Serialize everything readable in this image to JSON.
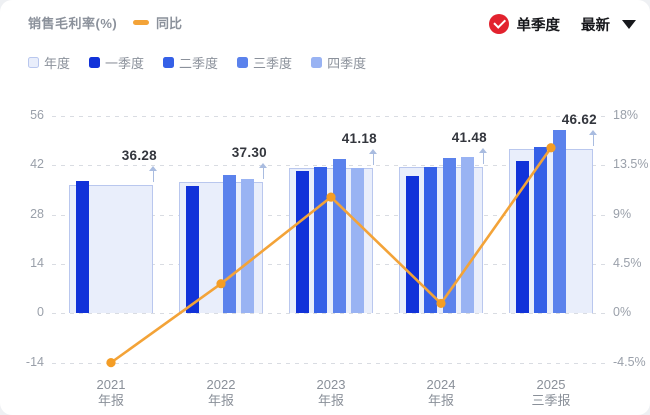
{
  "header": {
    "title": "销售毛利率(%)",
    "line_legend_label": "同比",
    "controls": {
      "single_quarter_label": "单季度",
      "latest_label": "最新",
      "check_color": "#e2222e"
    }
  },
  "legend": {
    "items": [
      {
        "label": "年度",
        "color": "#e9eefb",
        "border": "#b9c7ee"
      },
      {
        "label": "一季度",
        "color": "#1132d9",
        "border": null
      },
      {
        "label": "二季度",
        "color": "#3560e7",
        "border": null
      },
      {
        "label": "三季度",
        "color": "#5b82ec",
        "border": null
      },
      {
        "label": "四季度",
        "color": "#99b3f3",
        "border": null
      }
    ]
  },
  "chart_data": {
    "type": "bar",
    "subtype": "grouped bars with overlay line (combo)",
    "title": "销售毛利率(%)",
    "categories": [
      {
        "top": "2021",
        "bottom": "年报"
      },
      {
        "top": "2022",
        "bottom": "年报"
      },
      {
        "top": "2023",
        "bottom": "年报"
      },
      {
        "top": "2024",
        "bottom": "年报"
      },
      {
        "top": "2025",
        "bottom": "三季报"
      }
    ],
    "annual_series": {
      "name": "年度",
      "values": [
        36.28,
        37.3,
        41.18,
        41.48,
        46.62
      ],
      "labels": [
        "36.28",
        "37.30",
        "41.18",
        "41.48",
        "46.62"
      ],
      "fill": "#e9eefb",
      "border": "#b9c7ee"
    },
    "quarter_series": [
      {
        "name": "一季度",
        "color": "#1132d9",
        "values": [
          37.5,
          36.2,
          40.5,
          38.9,
          43.1
        ]
      },
      {
        "name": "二季度",
        "color": "#3560e7",
        "values": [
          null,
          null,
          41.6,
          41.4,
          47.1
        ]
      },
      {
        "name": "三季度",
        "color": "#5b82ec",
        "values": [
          null,
          39.2,
          43.7,
          44.1,
          52.0
        ]
      },
      {
        "name": "四季度",
        "color": "#99b3f3",
        "values": [
          null,
          38.1,
          41.1,
          44.3,
          null
        ]
      }
    ],
    "line_series": {
      "name": "同比",
      "color": "#f3a338",
      "dot_color": "#f49d25",
      "values_pct": [
        -4.5,
        2.7,
        10.6,
        0.9,
        15.1
      ]
    },
    "left_axis": {
      "ticks": [
        56,
        42,
        28,
        14,
        0,
        -14
      ],
      "min": -14,
      "max": 56
    },
    "right_axis": {
      "ticks": [
        "18%",
        "13.5%",
        "9%",
        "4.5%",
        "0%",
        "-4.5%"
      ],
      "min_pct": -4.5,
      "max_pct": 18
    },
    "grid": "dashed horizontal",
    "legend_position": "top-left"
  }
}
